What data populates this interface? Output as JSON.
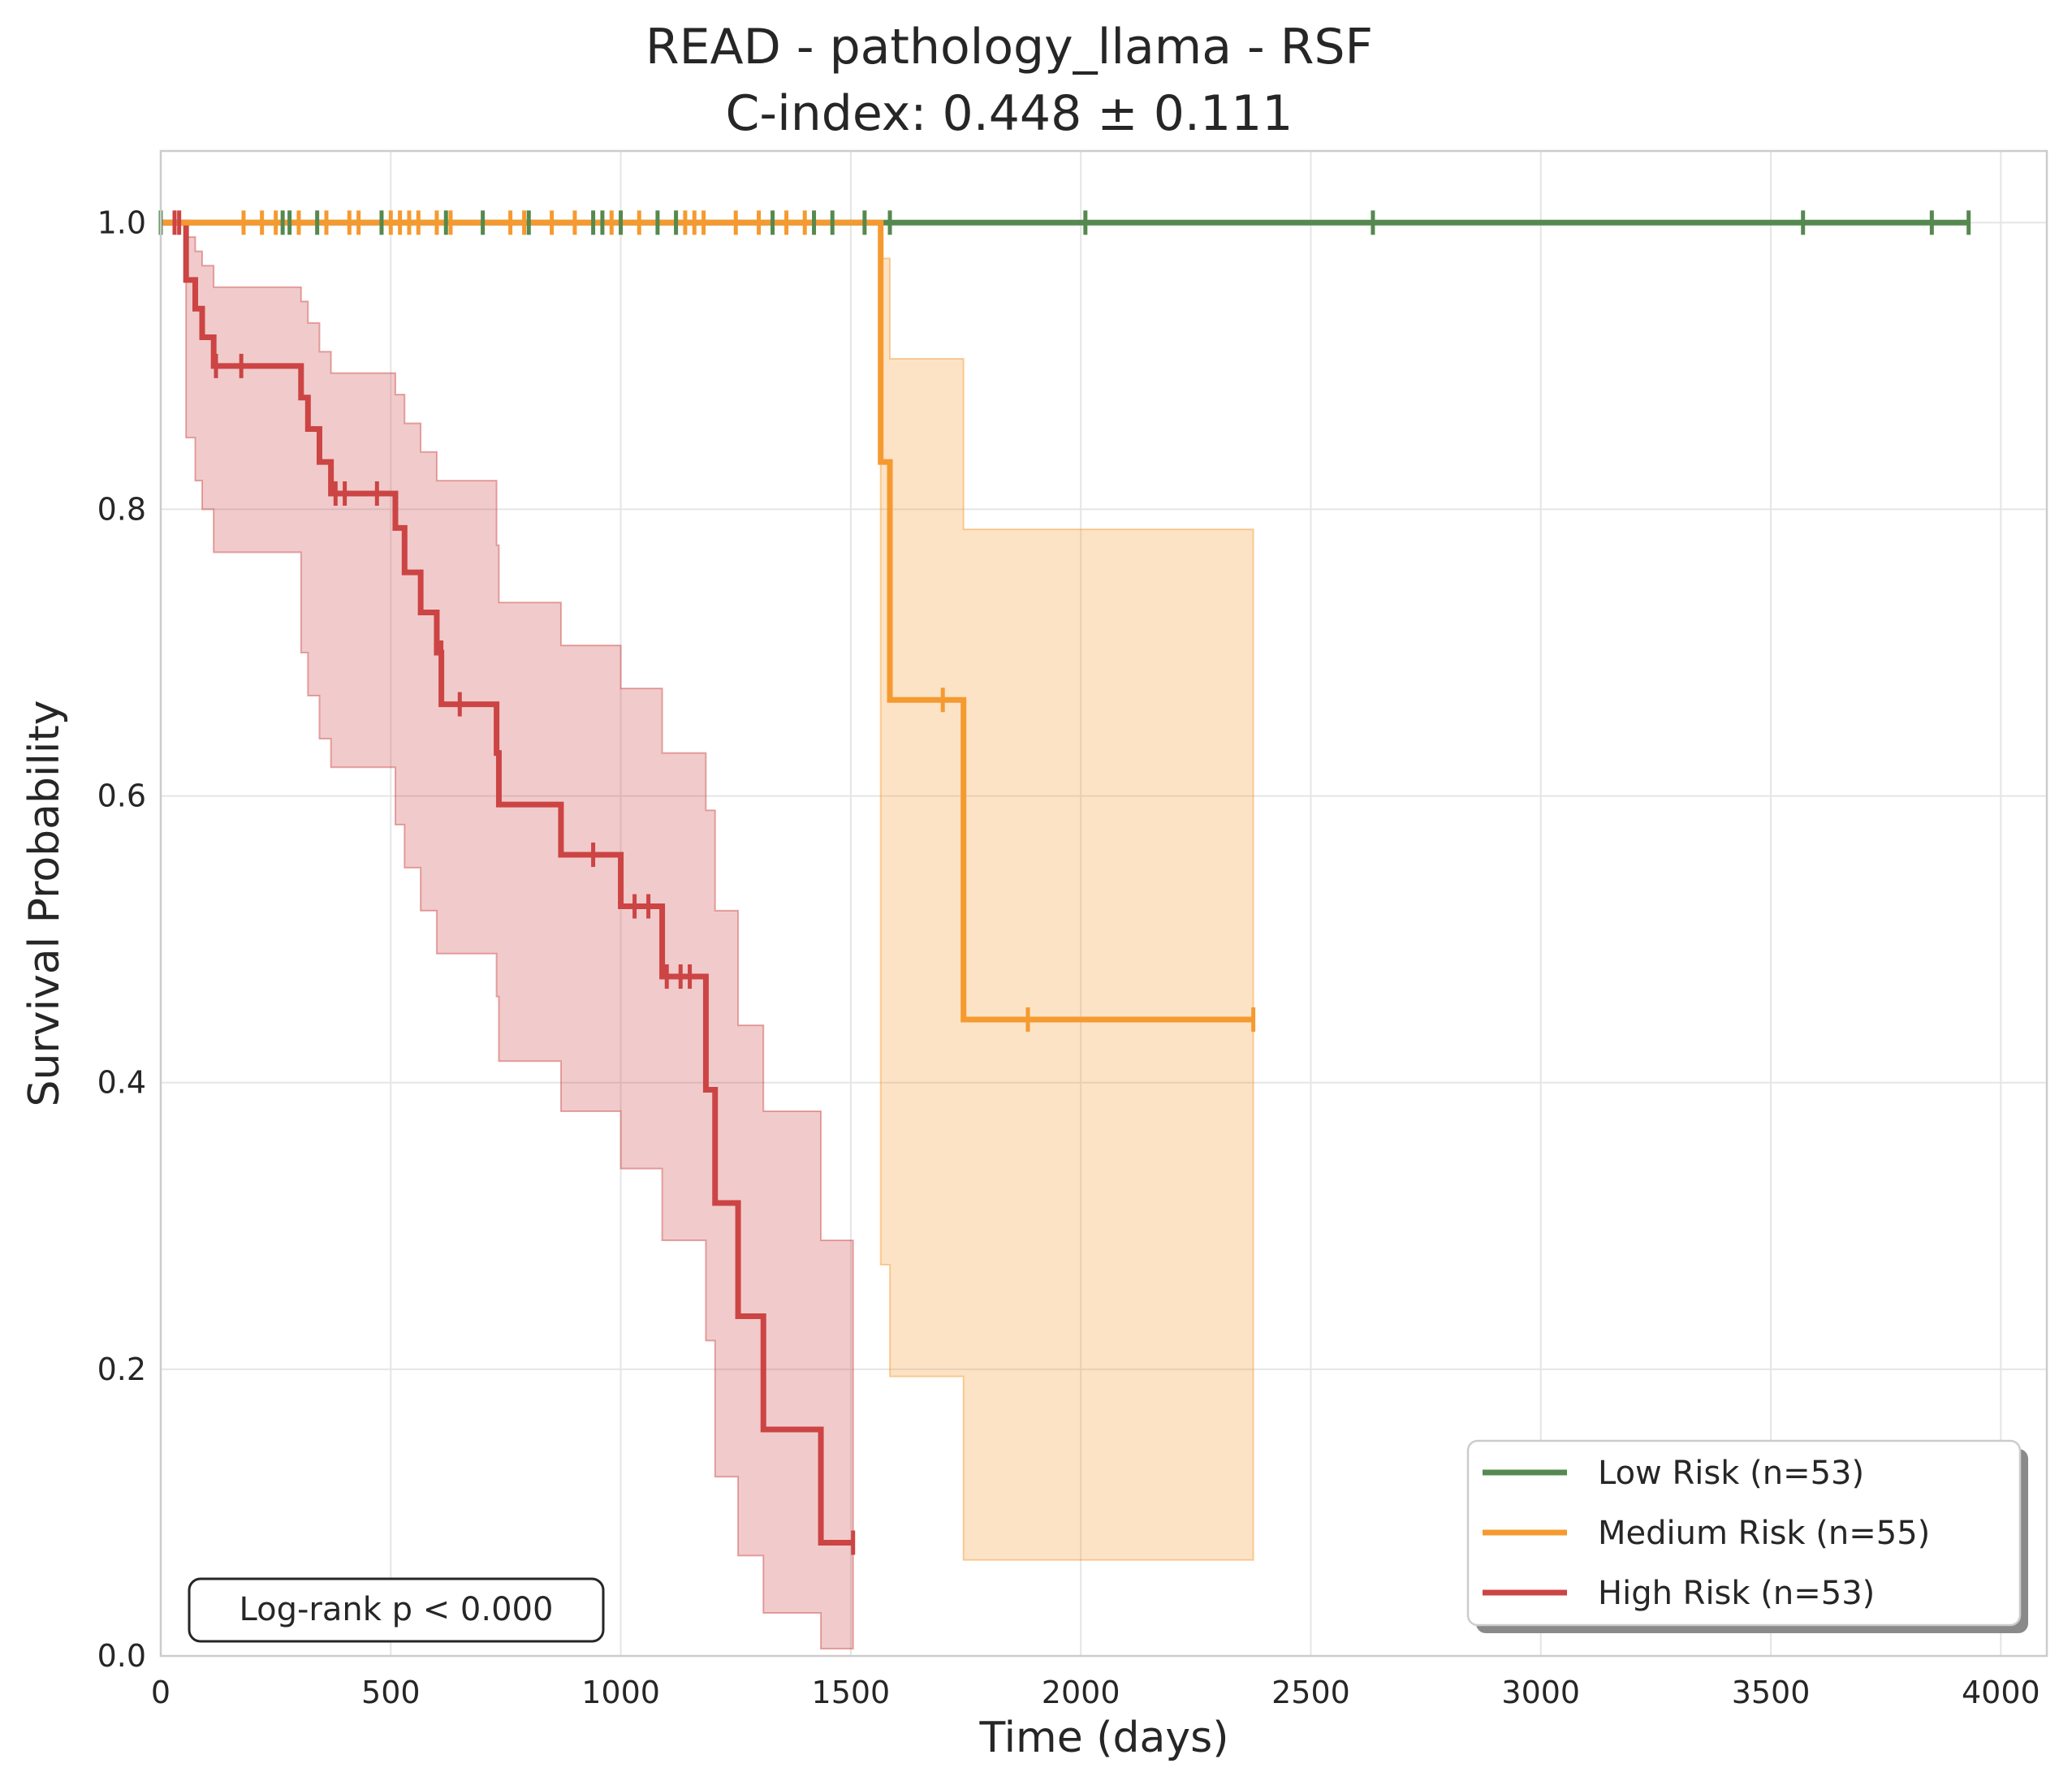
{
  "chart_data": {
    "type": "line",
    "subtype": "kaplan-meier",
    "title_line1": "READ - pathology_llama - RSF",
    "title_line2": "C-index: 0.448 ± 0.111",
    "xlabel": "Time (days)",
    "ylabel": "Survival Probability",
    "xlim": [
      0,
      4100
    ],
    "ylim": [
      0,
      1.05
    ],
    "xticks": [
      0,
      500,
      1000,
      1500,
      2000,
      2500,
      3000,
      3500,
      4000
    ],
    "xtick_labels": [
      "0",
      "500",
      "1000",
      "1500",
      "2000",
      "2500",
      "3000",
      "3500",
      "4000"
    ],
    "yticks": [
      0.0,
      0.2,
      0.4,
      0.6,
      0.8,
      1.0
    ],
    "ytick_labels": [
      "0.0",
      "0.2",
      "0.4",
      "0.6",
      "0.8",
      "1.0"
    ],
    "grid": true,
    "legend_position": "bottom-right",
    "annotation": "Log-rank p < 0.000",
    "series": [
      {
        "name": "Low Risk (n=53)",
        "color": "#55894f",
        "steps": [
          [
            0,
            1.0
          ],
          [
            3930,
            1.0
          ]
        ],
        "ci_lower": [],
        "ci_upper": [],
        "censors": [
          [
            0,
            1.0
          ],
          [
            265,
            1.0
          ],
          [
            280,
            1.0
          ],
          [
            340,
            1.0
          ],
          [
            480,
            1.0
          ],
          [
            620,
            1.0
          ],
          [
            700,
            1.0
          ],
          [
            800,
            1.0
          ],
          [
            940,
            1.0
          ],
          [
            960,
            1.0
          ],
          [
            1000,
            1.0
          ],
          [
            1080,
            1.0
          ],
          [
            1120,
            1.0
          ],
          [
            1330,
            1.0
          ],
          [
            1420,
            1.0
          ],
          [
            1460,
            1.0
          ],
          [
            1530,
            1.0
          ],
          [
            1585,
            1.0
          ],
          [
            2010,
            1.0
          ],
          [
            2635,
            1.0
          ],
          [
            3570,
            1.0
          ],
          [
            3850,
            1.0
          ],
          [
            3930,
            1.0
          ]
        ]
      },
      {
        "name": "Medium Risk (n=55)",
        "color": "#f59a30",
        "steps": [
          [
            0,
            1.0
          ],
          [
            1565,
            0.833
          ],
          [
            1585,
            0.667
          ],
          [
            1745,
            0.444
          ],
          [
            2375,
            0.444
          ]
        ],
        "ci_lower": [
          [
            1565,
            0.273
          ],
          [
            1585,
            0.195
          ],
          [
            1745,
            0.067
          ],
          [
            2375,
            0.067
          ]
        ],
        "ci_upper": [
          [
            1565,
            0.975
          ],
          [
            1585,
            0.905
          ],
          [
            1745,
            0.786
          ],
          [
            2375,
            0.786
          ]
        ],
        "censors": [
          [
            180,
            1.0
          ],
          [
            220,
            1.0
          ],
          [
            250,
            1.0
          ],
          [
            300,
            1.0
          ],
          [
            360,
            1.0
          ],
          [
            410,
            1.0
          ],
          [
            430,
            1.0
          ],
          [
            500,
            1.0
          ],
          [
            520,
            1.0
          ],
          [
            540,
            1.0
          ],
          [
            560,
            1.0
          ],
          [
            600,
            1.0
          ],
          [
            630,
            1.0
          ],
          [
            760,
            1.0
          ],
          [
            790,
            1.0
          ],
          [
            850,
            1.0
          ],
          [
            900,
            1.0
          ],
          [
            980,
            1.0
          ],
          [
            1040,
            1.0
          ],
          [
            1140,
            1.0
          ],
          [
            1160,
            1.0
          ],
          [
            1180,
            1.0
          ],
          [
            1250,
            1.0
          ],
          [
            1300,
            1.0
          ],
          [
            1360,
            1.0
          ],
          [
            1400,
            1.0
          ],
          [
            1700,
            0.667
          ],
          [
            1885,
            0.444
          ],
          [
            2375,
            0.444
          ]
        ]
      },
      {
        "name": "High Risk (n=53)",
        "color": "#cc4444",
        "steps": [
          [
            0,
            1.0
          ],
          [
            55,
            0.96
          ],
          [
            75,
            0.94
          ],
          [
            90,
            0.92
          ],
          [
            115,
            0.9
          ],
          [
            305,
            0.878
          ],
          [
            320,
            0.856
          ],
          [
            345,
            0.833
          ],
          [
            370,
            0.811
          ],
          [
            510,
            0.787
          ],
          [
            530,
            0.756
          ],
          [
            565,
            0.728
          ],
          [
            600,
            0.7
          ],
          [
            610,
            0.664
          ],
          [
            730,
            0.63
          ],
          [
            735,
            0.594
          ],
          [
            870,
            0.559
          ],
          [
            1000,
            0.523
          ],
          [
            1090,
            0.474
          ],
          [
            1185,
            0.395
          ],
          [
            1205,
            0.316
          ],
          [
            1255,
            0.237
          ],
          [
            1310,
            0.158
          ],
          [
            1435,
            0.079
          ],
          [
            1505,
            0.079
          ]
        ],
        "ci_lower": [
          [
            55,
            0.85
          ],
          [
            75,
            0.82
          ],
          [
            90,
            0.8
          ],
          [
            115,
            0.77
          ],
          [
            305,
            0.7
          ],
          [
            320,
            0.67
          ],
          [
            345,
            0.64
          ],
          [
            370,
            0.62
          ],
          [
            510,
            0.58
          ],
          [
            530,
            0.55
          ],
          [
            565,
            0.52
          ],
          [
            600,
            0.49
          ],
          [
            730,
            0.46
          ],
          [
            735,
            0.415
          ],
          [
            870,
            0.38
          ],
          [
            1000,
            0.34
          ],
          [
            1090,
            0.29
          ],
          [
            1185,
            0.22
          ],
          [
            1205,
            0.125
          ],
          [
            1255,
            0.07
          ],
          [
            1310,
            0.03
          ],
          [
            1435,
            0.005
          ],
          [
            1505,
            0.005
          ]
        ],
        "ci_upper": [
          [
            55,
            0.99
          ],
          [
            75,
            0.98
          ],
          [
            90,
            0.97
          ],
          [
            115,
            0.955
          ],
          [
            305,
            0.945
          ],
          [
            320,
            0.93
          ],
          [
            345,
            0.91
          ],
          [
            370,
            0.895
          ],
          [
            510,
            0.88
          ],
          [
            530,
            0.86
          ],
          [
            565,
            0.84
          ],
          [
            600,
            0.82
          ],
          [
            730,
            0.775
          ],
          [
            735,
            0.735
          ],
          [
            870,
            0.705
          ],
          [
            1000,
            0.675
          ],
          [
            1090,
            0.63
          ],
          [
            1185,
            0.59
          ],
          [
            1205,
            0.52
          ],
          [
            1255,
            0.44
          ],
          [
            1310,
            0.38
          ],
          [
            1435,
            0.29
          ],
          [
            1505,
            0.29
          ]
        ],
        "censors": [
          [
            30,
            1.0
          ],
          [
            40,
            1.0
          ],
          [
            120,
            0.9
          ],
          [
            175,
            0.9
          ],
          [
            380,
            0.811
          ],
          [
            400,
            0.811
          ],
          [
            470,
            0.811
          ],
          [
            610,
            0.7
          ],
          [
            650,
            0.664
          ],
          [
            940,
            0.559
          ],
          [
            1030,
            0.523
          ],
          [
            1060,
            0.523
          ],
          [
            1100,
            0.474
          ],
          [
            1130,
            0.474
          ],
          [
            1150,
            0.474
          ],
          [
            1505,
            0.079
          ]
        ]
      }
    ]
  }
}
